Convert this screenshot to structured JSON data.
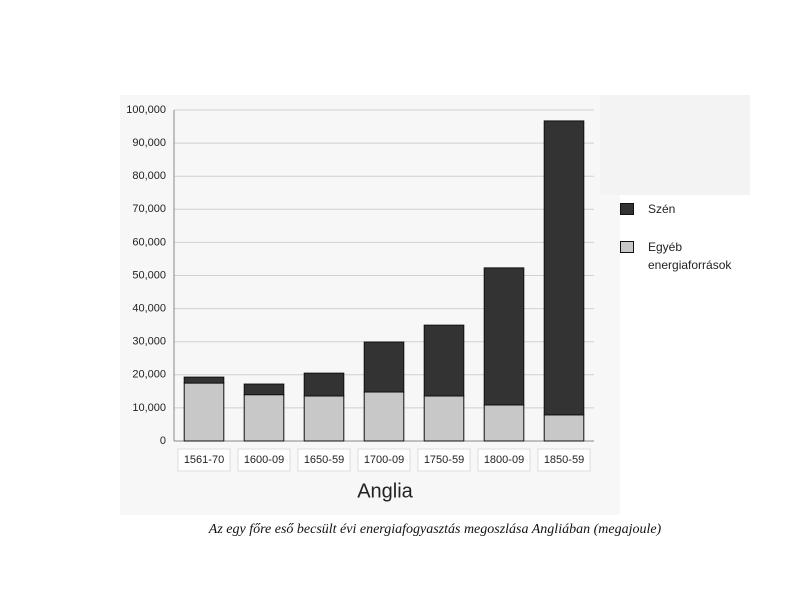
{
  "chart_data": {
    "type": "stacked-bar",
    "x_label": "Anglia",
    "caption": "Az egy főre eső becsült évi energiafogyasztás megoszlása Angliában (megajoule)",
    "categories": [
      "1561-70",
      "1600-09",
      "1650-59",
      "1700-09",
      "1750-59",
      "1800-09",
      "1850-59"
    ],
    "series": [
      {
        "name": "Egyéb energiaforrások",
        "color": "#c8c8c8",
        "values": [
          17500,
          14000,
          13600,
          14800,
          13600,
          10900,
          7900
        ]
      },
      {
        "name": "Szén",
        "color": "#333333",
        "values": [
          1800,
          3200,
          6900,
          15100,
          21400,
          41400,
          88800
        ]
      }
    ],
    "ylim": [
      0,
      100000
    ],
    "yticks": [
      0,
      {
        "value": 10000,
        "label": "10,000"
      },
      {
        "value": 20000,
        "label": "20,000"
      },
      {
        "value": 30000,
        "label": "30,000"
      },
      {
        "value": 40000,
        "label": "40,000"
      },
      {
        "value": 50000,
        "label": "50,000"
      },
      {
        "value": 60000,
        "label": "60,000"
      },
      {
        "value": 70000,
        "label": "70,000"
      },
      {
        "value": 80000,
        "label": "80,000"
      },
      {
        "value": 90000,
        "label": "90,000"
      },
      {
        "value": 100000,
        "label": "100,000"
      }
    ],
    "grid": true
  }
}
